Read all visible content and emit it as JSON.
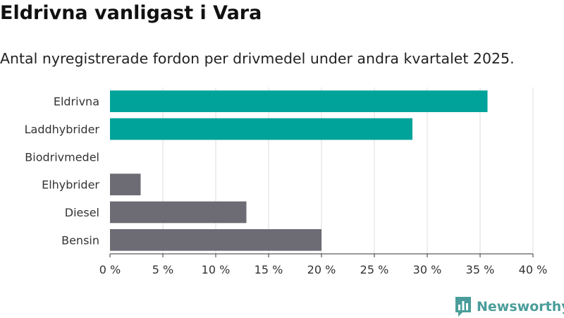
{
  "header": {
    "title": "Eldrivna vanligast i Vara",
    "subtitle": "Antal nyregistrerade fordon per drivmedel under andra kvartalet 2025."
  },
  "brand": {
    "name": "Newsworthy",
    "icon": "newsworthy-logo-icon",
    "color": "#4a9d9a"
  },
  "chart_data": {
    "type": "bar",
    "orientation": "horizontal",
    "categories": [
      "Eldrivna",
      "Laddhybrider",
      "Biodrivmedel",
      "Elhybrider",
      "Diesel",
      "Bensin"
    ],
    "values": [
      35.7,
      28.6,
      0,
      2.9,
      12.9,
      20.0
    ],
    "colors": [
      "#00a39a",
      "#00a39a",
      "#00a39a",
      "#6d6c74",
      "#6d6c74",
      "#6d6c74"
    ],
    "xlim": [
      0,
      40
    ],
    "xticks": [
      0,
      5,
      10,
      15,
      20,
      25,
      30,
      35,
      40
    ],
    "xtick_labels": [
      "0 %",
      "5 %",
      "10 %",
      "15 %",
      "20 %",
      "25 %",
      "30 %",
      "35 %",
      "40 %"
    ],
    "grid": "vertical",
    "xlabel": "",
    "ylabel": ""
  }
}
